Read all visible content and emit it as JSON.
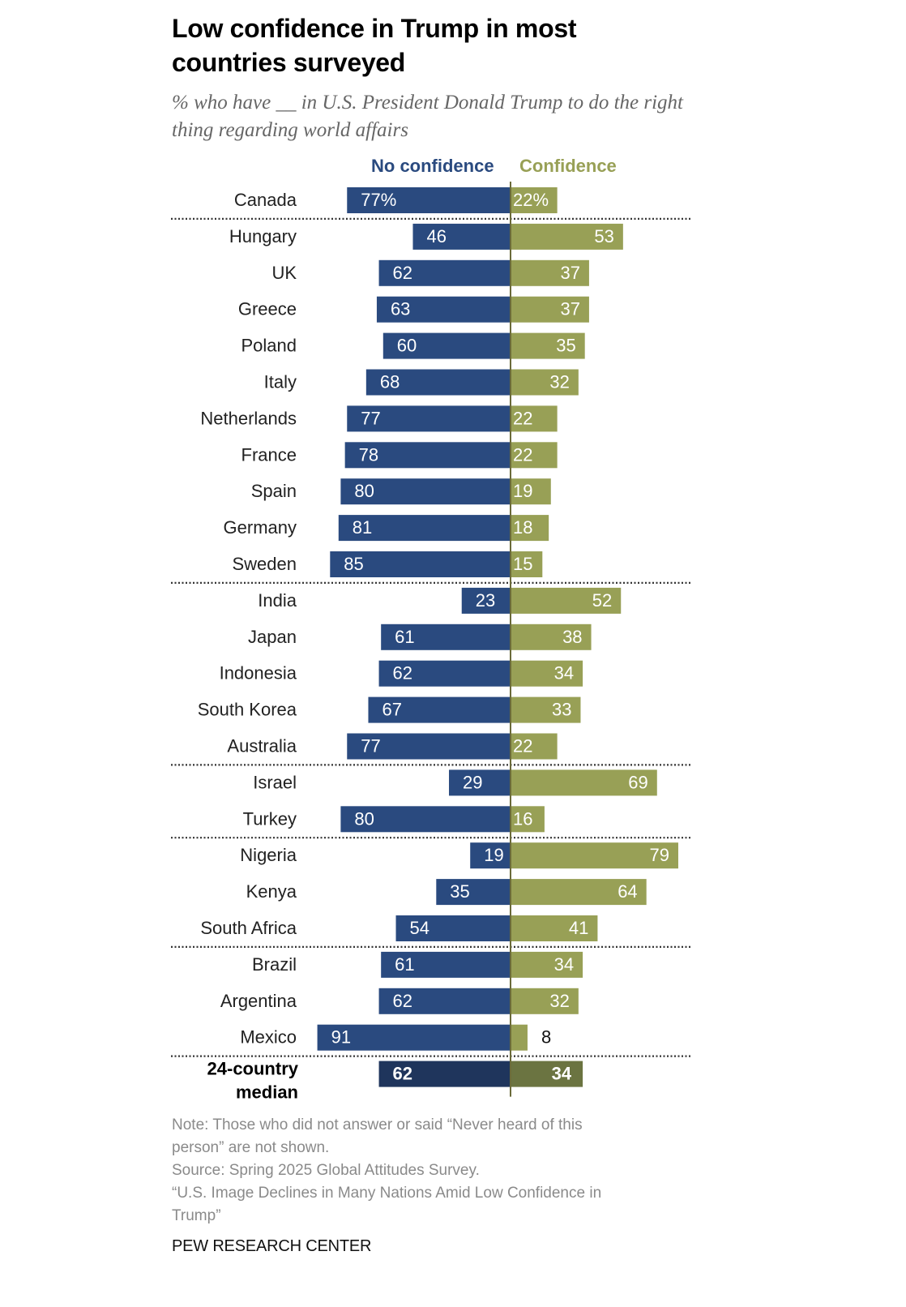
{
  "chart_data": {
    "type": "bar",
    "orientation": "horizontal-diverging",
    "title": "Low confidence in Trump in most countries surveyed",
    "subtitle": "% who have __ in U.S. President Donald Trump to do the right thing regarding world affairs",
    "legend": [
      "No confidence",
      "Confidence"
    ],
    "colors": {
      "no_confidence": "#2a4a7f",
      "confidence": "#98a056",
      "median_no_confidence": "#1f355c",
      "median_confidence": "#6b7441",
      "axis": "#6b6b3a"
    },
    "categories": [
      "Canada",
      "Hungary",
      "UK",
      "Greece",
      "Poland",
      "Italy",
      "Netherlands",
      "France",
      "Spain",
      "Germany",
      "Sweden",
      "India",
      "Japan",
      "Indonesia",
      "South Korea",
      "Australia",
      "Israel",
      "Turkey",
      "Nigeria",
      "Kenya",
      "South Africa",
      "Brazil",
      "Argentina",
      "Mexico"
    ],
    "series": [
      {
        "name": "No confidence",
        "values": [
          77,
          46,
          62,
          63,
          60,
          68,
          77,
          78,
          80,
          81,
          85,
          23,
          61,
          62,
          67,
          77,
          29,
          80,
          19,
          35,
          54,
          61,
          62,
          91
        ]
      },
      {
        "name": "Confidence",
        "values": [
          22,
          53,
          37,
          37,
          35,
          32,
          22,
          22,
          19,
          18,
          15,
          52,
          38,
          34,
          33,
          22,
          69,
          16,
          79,
          64,
          41,
          34,
          32,
          8
        ]
      }
    ],
    "value_labels": {
      "no_confidence": [
        "77%",
        "46",
        "62",
        "63",
        "60",
        "68",
        "77",
        "78",
        "80",
        "81",
        "85",
        "23",
        "61",
        "62",
        "67",
        "77",
        "29",
        "80",
        "19",
        "35",
        "54",
        "61",
        "62",
        "91"
      ],
      "confidence": [
        "22%",
        "53",
        "37",
        "37",
        "35",
        "32",
        "22",
        "22",
        "19",
        "18",
        "15",
        "52",
        "38",
        "34",
        "33",
        "22",
        "69",
        "16",
        "79",
        "64",
        "41",
        "34",
        "32",
        "8"
      ]
    },
    "group_breaks_after": [
      "Canada",
      "Sweden",
      "Australia",
      "Turkey",
      "South Africa",
      "Mexico"
    ],
    "median": {
      "label_line1": "24-country",
      "label_line2": "median",
      "no_confidence": 62,
      "confidence": 34
    },
    "xlim": [
      0,
      100
    ],
    "grid": false
  },
  "footer": {
    "note_line1": "Note: Those who did not answer or said “Never heard of this",
    "note_line2": "person” are not shown.",
    "source": "Source: Spring 2025 Global Attitudes Survey.",
    "report_line1": "“U.S. Image Declines in Many Nations Amid Low Confidence in",
    "report_line2": "Trump”",
    "brand": "PEW RESEARCH CENTER"
  }
}
